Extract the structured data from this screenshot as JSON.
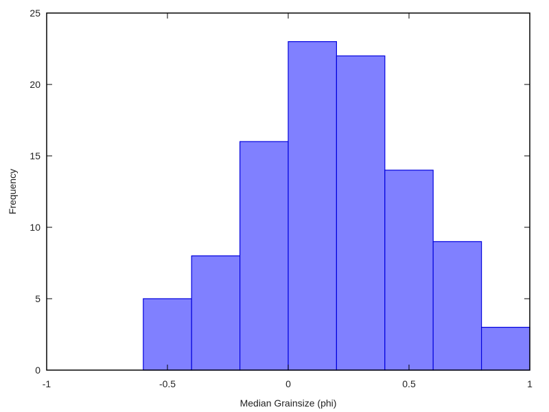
{
  "chart_data": {
    "type": "bar",
    "title": "",
    "xlabel": "Median Grainsize (phi)",
    "ylabel": "Frequency",
    "xlim": [
      -1,
      1
    ],
    "ylim": [
      0,
      25
    ],
    "bin_edges": [
      -0.6,
      -0.4,
      -0.2,
      0.0,
      0.2,
      0.4,
      0.6,
      0.8,
      1.0
    ],
    "categories": [
      "-0.6 to -0.4",
      "-0.4 to -0.2",
      "-0.2 to 0",
      "0 to 0.2",
      "0.2 to 0.4",
      "0.4 to 0.6",
      "0.6 to 0.8",
      "0.8 to 1.0"
    ],
    "values": [
      5,
      8,
      16,
      23,
      22,
      14,
      9,
      3
    ],
    "x_ticks": [
      -1,
      -0.5,
      0,
      0.5,
      1
    ],
    "x_tick_labels": [
      "-1",
      "-0.5",
      "0",
      "0.5",
      "1"
    ],
    "y_ticks": [
      0,
      5,
      10,
      15,
      20,
      25
    ],
    "y_tick_labels": [
      "0",
      "5",
      "10",
      "15",
      "20",
      "25"
    ],
    "grid": false,
    "legend": null,
    "colors": {
      "bar_fill": "#8080ff",
      "bar_edge": "#0000dd",
      "axis": "#000000"
    }
  }
}
